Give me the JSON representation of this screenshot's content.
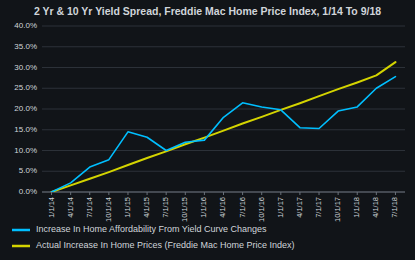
{
  "chart_data": {
    "type": "line",
    "title": "2 Yr & 10 Yr Yield Spread, Freddie Mac Home Price Index, 1/14 To 9/18",
    "categories": [
      "1/1/14",
      "4/1/14",
      "7/1/14",
      "10/1/14",
      "1/1/15",
      "4/1/15",
      "7/1/15",
      "10/1/15",
      "1/1/16",
      "4/1/16",
      "7/1/16",
      "10/1/16",
      "1/1/17",
      "4/1/17",
      "7/1/17",
      "10/1/17",
      "1/1/18",
      "4/1/18",
      "7/1/18"
    ],
    "series": [
      {
        "name": "Increase In Home Affordability From Yield Curve Changes",
        "color": "#00bfff",
        "values": [
          0.0,
          0.022,
          0.06,
          0.078,
          0.145,
          0.132,
          0.1,
          0.12,
          0.125,
          0.18,
          0.215,
          0.205,
          0.198,
          0.155,
          0.153,
          0.195,
          0.205,
          0.25,
          0.278
        ]
      },
      {
        "name": "Actual Increase In Home Prices (Freddie Mac Home Price Index)",
        "color": "#d4d400",
        "values": [
          0.0,
          0.016,
          0.032,
          0.048,
          0.065,
          0.082,
          0.098,
          0.115,
          0.131,
          0.148,
          0.165,
          0.181,
          0.198,
          0.214,
          0.231,
          0.248,
          0.264,
          0.281,
          0.313
        ]
      }
    ],
    "ylim": [
      0.0,
      0.4
    ],
    "yticks": [
      {
        "value": 0.0,
        "label": "0.0%"
      },
      {
        "value": 0.05,
        "label": "5.0%"
      },
      {
        "value": 0.1,
        "label": "10.0%"
      },
      {
        "value": 0.15,
        "label": "15.0%"
      },
      {
        "value": 0.2,
        "label": "20.0%"
      },
      {
        "value": 0.25,
        "label": "25.0%"
      },
      {
        "value": 0.3,
        "label": "30.0%"
      },
      {
        "value": 0.35,
        "label": "35.0%"
      },
      {
        "value": 0.4,
        "label": "40.0%"
      }
    ],
    "grid": true,
    "legend": "bottom"
  }
}
